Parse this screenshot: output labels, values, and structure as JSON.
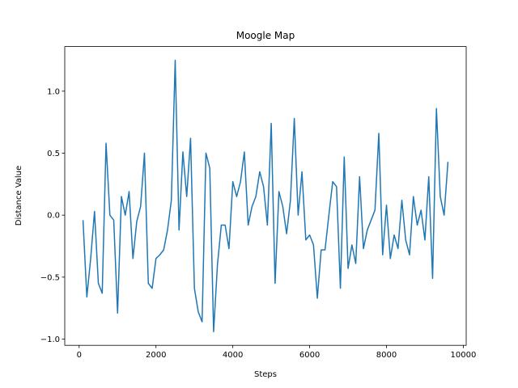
{
  "chart_data": {
    "type": "line",
    "title": "Moogle Map",
    "xlabel": "Steps",
    "ylabel": "Distance Value",
    "x": [
      100,
      200,
      300,
      400,
      500,
      600,
      700,
      800,
      900,
      1000,
      1100,
      1200,
      1300,
      1400,
      1500,
      1600,
      1700,
      1800,
      1900,
      2000,
      2100,
      2200,
      2300,
      2400,
      2500,
      2600,
      2700,
      2800,
      2900,
      3000,
      3100,
      3200,
      3300,
      3400,
      3500,
      3600,
      3700,
      3800,
      3900,
      4000,
      4100,
      4200,
      4300,
      4400,
      4500,
      4600,
      4700,
      4800,
      4900,
      5000,
      5100,
      5200,
      5300,
      5400,
      5500,
      5600,
      5700,
      5800,
      5900,
      6000,
      6100,
      6200,
      6300,
      6400,
      6500,
      6600,
      6700,
      6800,
      6900,
      7000,
      7100,
      7200,
      7300,
      7400,
      7500,
      7600,
      7700,
      7800,
      7900,
      8000,
      8100,
      8200,
      8300,
      8400,
      8500,
      8600,
      8700,
      8800,
      8900,
      9000,
      9100,
      9200,
      9300,
      9400,
      9500,
      9600
    ],
    "series": [
      {
        "color": "#1f77b4",
        "values": [
          -0.04,
          -0.66,
          -0.35,
          0.03,
          -0.55,
          -0.63,
          0.58,
          0.0,
          -0.04,
          -0.79,
          0.15,
          0.0,
          0.19,
          -0.35,
          -0.05,
          0.07,
          0.5,
          -0.55,
          -0.59,
          -0.35,
          -0.32,
          -0.28,
          -0.12,
          0.12,
          1.25,
          -0.12,
          0.51,
          0.15,
          0.62,
          -0.59,
          -0.78,
          -0.86,
          0.5,
          0.38,
          -0.94,
          -0.4,
          -0.08,
          -0.08,
          -0.27,
          0.27,
          0.15,
          0.27,
          0.51,
          -0.08,
          0.07,
          0.15,
          0.35,
          0.23,
          -0.08,
          0.74,
          -0.55,
          0.19,
          0.07,
          -0.15,
          0.12,
          0.78,
          0.0,
          0.35,
          -0.2,
          -0.16,
          -0.24,
          -0.67,
          -0.28,
          -0.28,
          0.0,
          0.27,
          0.23,
          -0.59,
          0.47,
          -0.43,
          -0.24,
          -0.39,
          0.31,
          -0.27,
          -0.12,
          -0.04,
          0.04,
          0.66,
          -0.32,
          0.08,
          -0.35,
          -0.16,
          -0.27,
          0.12,
          -0.2,
          -0.32,
          0.15,
          -0.08,
          0.04,
          -0.2,
          0.31,
          -0.51,
          0.86,
          0.15,
          0.0,
          0.43
        ]
      }
    ],
    "xlim": [
      -375,
      10075
    ],
    "ylim": [
      -1.05,
      1.36
    ],
    "xticks": [
      0,
      2000,
      4000,
      6000,
      8000,
      10000
    ],
    "yticks": [
      {
        "value": -1,
        "label": "−1.0"
      },
      {
        "value": -0.5,
        "label": "−0.5"
      },
      {
        "value": 0,
        "label": "0.0"
      },
      {
        "value": 0.5,
        "label": "0.5"
      },
      {
        "value": 1,
        "label": "1.0"
      }
    ]
  }
}
